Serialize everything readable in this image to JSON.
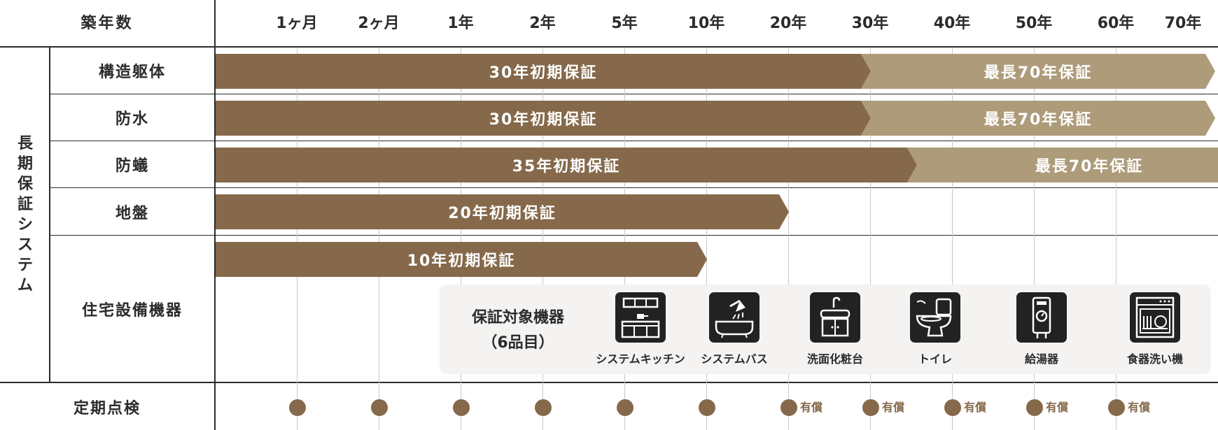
{
  "header": {
    "corner_label": "築年数",
    "years": [
      "1ヶ月",
      "2ヶ月",
      "1年",
      "2年",
      "5年",
      "10年",
      "20年",
      "30年",
      "40年",
      "50年",
      "60年",
      "70年"
    ]
  },
  "system_label": "長期保証システム",
  "rows": [
    {
      "label": "構造躯体",
      "bars": [
        {
          "text": "30年初期保証",
          "from": "0",
          "to": "30年",
          "tone": "dark"
        },
        {
          "text": "最長70年保証",
          "from": "30年",
          "to": "70年",
          "tone": "light"
        }
      ]
    },
    {
      "label": "防水",
      "bars": [
        {
          "text": "30年初期保証",
          "from": "0",
          "to": "30年",
          "tone": "dark"
        },
        {
          "text": "最長70年保証",
          "from": "30年",
          "to": "70年",
          "tone": "light"
        }
      ]
    },
    {
      "label": "防蟻",
      "bars": [
        {
          "text": "35年初期保証",
          "from": "0",
          "to": "35年",
          "tone": "dark"
        },
        {
          "text": "最長70年保証",
          "from": "35年",
          "to": "70年",
          "tone": "light"
        }
      ]
    },
    {
      "label": "地盤",
      "bars": [
        {
          "text": "20年初期保証",
          "from": "0",
          "to": "20年",
          "tone": "dark"
        }
      ]
    },
    {
      "label": "住宅設備機器",
      "bars": [
        {
          "text": "10年初期保証",
          "from": "0",
          "to": "10年",
          "tone": "dark"
        }
      ]
    }
  ],
  "equipment": {
    "title_line1": "保証対象機器",
    "title_line2": "（6品目）",
    "items": [
      {
        "label": "システムキッチン",
        "icon": "kitchen-icon"
      },
      {
        "label": "システムバス",
        "icon": "bathtub-icon"
      },
      {
        "label": "洗面化粧台",
        "icon": "vanity-icon"
      },
      {
        "label": "トイレ",
        "icon": "toilet-icon"
      },
      {
        "label": "給湯器",
        "icon": "water-heater-icon"
      },
      {
        "label": "食器洗い機",
        "icon": "dishwasher-icon"
      }
    ]
  },
  "inspection": {
    "label": "定期点検",
    "paid_label": "有償",
    "points": [
      {
        "at": "1ヶ月",
        "paid": false
      },
      {
        "at": "2ヶ月",
        "paid": false
      },
      {
        "at": "1年",
        "paid": false
      },
      {
        "at": "2年",
        "paid": false
      },
      {
        "at": "5年",
        "paid": false
      },
      {
        "at": "10年",
        "paid": false
      },
      {
        "at": "20年",
        "paid": true
      },
      {
        "at": "30年",
        "paid": true
      },
      {
        "at": "40年",
        "paid": true
      },
      {
        "at": "50年",
        "paid": true
      },
      {
        "at": "60年",
        "paid": true
      }
    ]
  },
  "colors": {
    "dark_bar": "#85694a",
    "light_bar": "#ad9b7a",
    "line": "#2b2b2b",
    "grid": "#c9c9c9",
    "panel": "#f4f3f1"
  }
}
